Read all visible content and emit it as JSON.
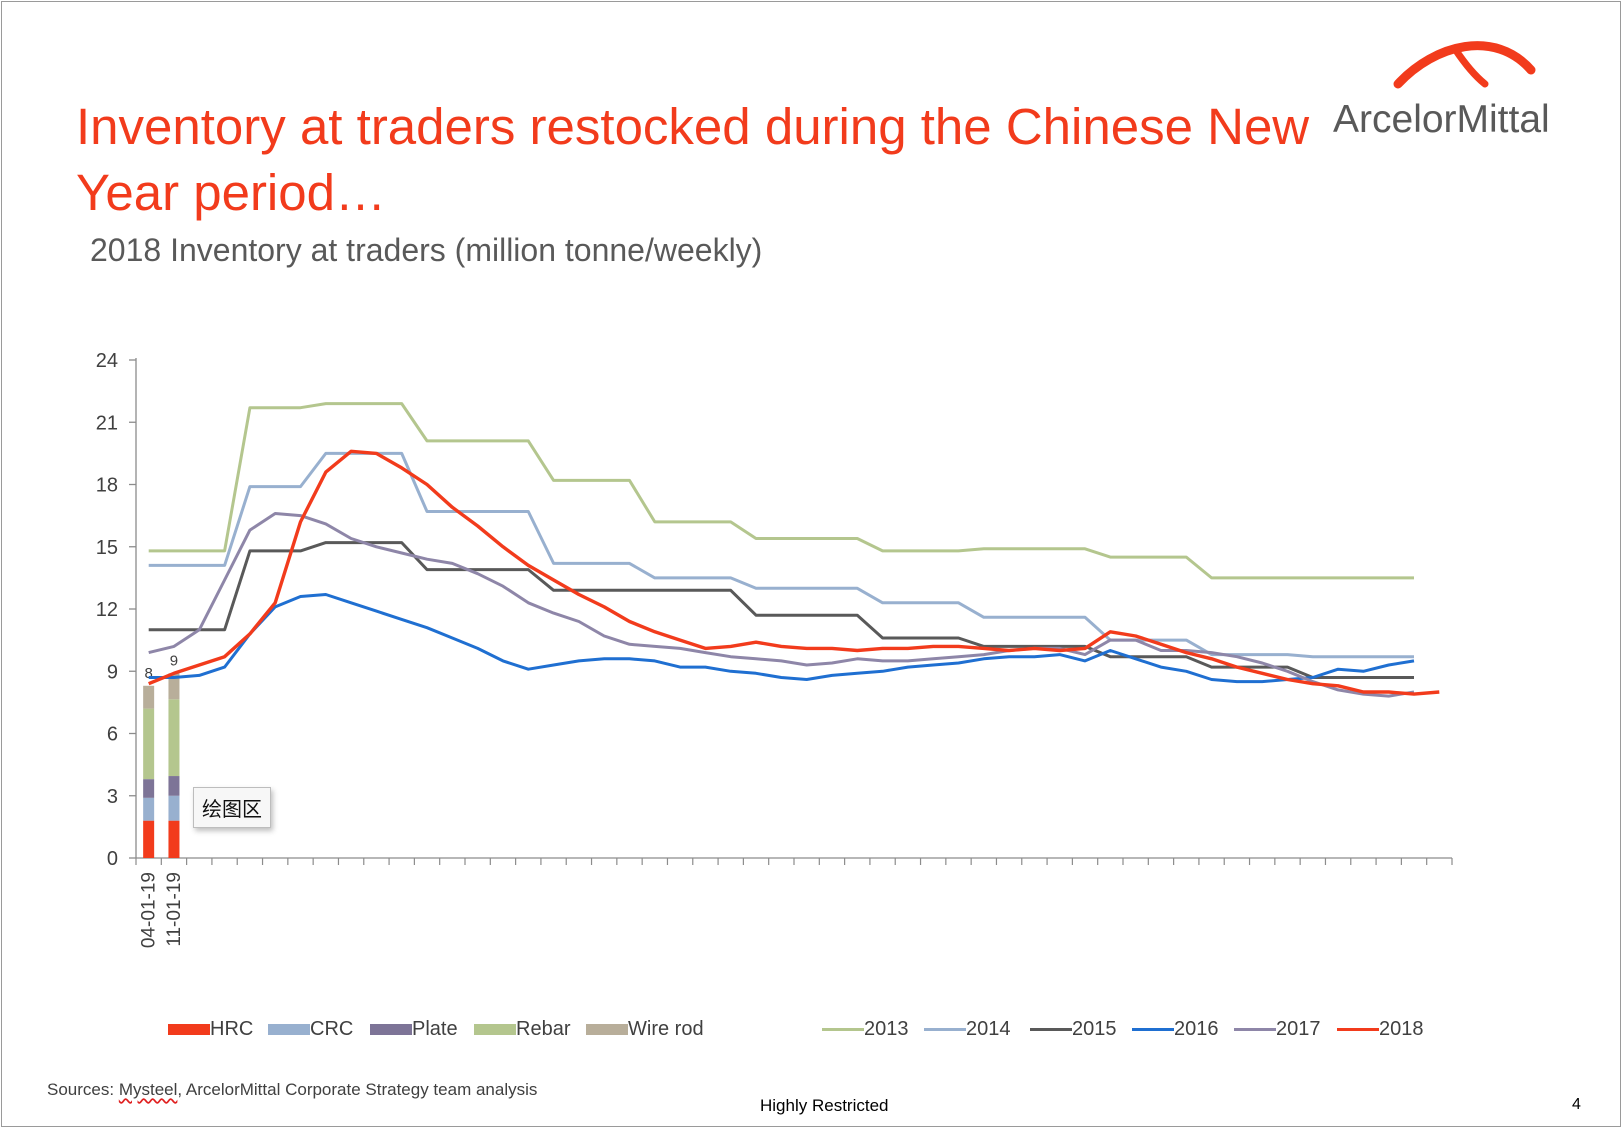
{
  "slide": {
    "title": "Inventory at traders restocked during the Chinese New Year period…",
    "logo_text": "ArcelorMittal",
    "sources_prefix": "Sources: ",
    "sources_mysteel": "Mysteel",
    "sources_rest": ", ArcelorMittal Corporate Strategy team analysis",
    "classification": "Highly Restricted",
    "page_number": "4",
    "tooltip": "绘图区"
  },
  "colors": {
    "title": "#f23b1c",
    "logo_arc": "#f23b1c",
    "HRC": "#f23b1c",
    "CRC": "#98b0cf",
    "Plate": "#7d7497",
    "Rebar": "#b4c68e",
    "Wire rod": "#b8ae9a",
    "2013": "#b4c68e",
    "2014": "#98b0cf",
    "2015": "#595959",
    "2016": "#1f6fd1",
    "2017": "#8e86a8",
    "2018": "#f23b1c"
  },
  "chart_data": {
    "type": "bar",
    "title": "2018 Inventory at traders (million tonne/weekly)",
    "xlabel": "",
    "ylabel": "",
    "ylim": [
      0,
      24
    ],
    "yticks": [
      0,
      3,
      6,
      9,
      12,
      15,
      18,
      21,
      24
    ],
    "categories": [
      "04-01-19",
      "11-01-19"
    ],
    "stacked_series": [
      {
        "name": "HRC",
        "values": [
          1.8,
          1.8
        ]
      },
      {
        "name": "CRC",
        "values": [
          1.1,
          1.2
        ]
      },
      {
        "name": "Plate",
        "values": [
          0.9,
          0.95
        ]
      },
      {
        "name": "Rebar",
        "values": [
          3.4,
          3.7
        ]
      },
      {
        "name": "Wire rod",
        "values": [
          1.1,
          1.25
        ]
      }
    ],
    "totals": [
      "8",
      "9"
    ],
    "line_series": [
      {
        "name": "2013",
        "values": [
          14.8,
          14.8,
          14.8,
          14.8,
          21.7,
          21.7,
          21.7,
          21.9,
          21.9,
          21.9,
          21.9,
          20.1,
          20.1,
          20.1,
          20.1,
          20.1,
          18.2,
          18.2,
          18.2,
          18.2,
          16.2,
          16.2,
          16.2,
          16.2,
          15.4,
          15.4,
          15.4,
          15.4,
          15.4,
          14.8,
          14.8,
          14.8,
          14.8,
          14.9,
          14.9,
          14.9,
          14.9,
          14.9,
          14.5,
          14.5,
          14.5,
          14.5,
          13.5,
          13.5,
          13.5,
          13.5,
          13.5,
          13.5,
          13.5,
          13.5,
          13.5
        ]
      },
      {
        "name": "2014",
        "values": [
          14.1,
          14.1,
          14.1,
          14.1,
          17.9,
          17.9,
          17.9,
          19.5,
          19.5,
          19.5,
          19.5,
          16.7,
          16.7,
          16.7,
          16.7,
          16.7,
          14.2,
          14.2,
          14.2,
          14.2,
          13.5,
          13.5,
          13.5,
          13.5,
          13.0,
          13.0,
          13.0,
          13.0,
          13.0,
          12.3,
          12.3,
          12.3,
          12.3,
          11.6,
          11.6,
          11.6,
          11.6,
          11.6,
          10.5,
          10.5,
          10.5,
          10.5,
          9.8,
          9.8,
          9.8,
          9.8,
          9.7,
          9.7,
          9.7,
          9.7,
          9.7
        ]
      },
      {
        "name": "2015",
        "values": [
          11.0,
          11.0,
          11.0,
          11.0,
          14.8,
          14.8,
          14.8,
          15.2,
          15.2,
          15.2,
          15.2,
          13.9,
          13.9,
          13.9,
          13.9,
          13.9,
          12.9,
          12.9,
          12.9,
          12.9,
          12.9,
          12.9,
          12.9,
          12.9,
          11.7,
          11.7,
          11.7,
          11.7,
          11.7,
          10.6,
          10.6,
          10.6,
          10.6,
          10.2,
          10.2,
          10.2,
          10.2,
          10.2,
          9.7,
          9.7,
          9.7,
          9.7,
          9.2,
          9.2,
          9.2,
          9.2,
          8.7,
          8.7,
          8.7,
          8.7,
          8.7
        ]
      },
      {
        "name": "2016",
        "values": [
          8.7,
          8.7,
          8.8,
          9.2,
          10.8,
          12.1,
          12.6,
          12.7,
          12.3,
          11.9,
          11.5,
          11.1,
          10.6,
          10.1,
          9.5,
          9.1,
          9.3,
          9.5,
          9.6,
          9.6,
          9.5,
          9.2,
          9.2,
          9.0,
          8.9,
          8.7,
          8.6,
          8.8,
          8.9,
          9.0,
          9.2,
          9.3,
          9.4,
          9.6,
          9.7,
          9.7,
          9.8,
          9.5,
          10.0,
          9.6,
          9.2,
          9.0,
          8.6,
          8.5,
          8.5,
          8.6,
          8.7,
          9.1,
          9.0,
          9.3,
          9.5
        ]
      },
      {
        "name": "2017",
        "values": [
          9.9,
          10.2,
          11.0,
          13.4,
          15.8,
          16.6,
          16.5,
          16.1,
          15.4,
          15.0,
          14.7,
          14.4,
          14.2,
          13.7,
          13.1,
          12.3,
          11.8,
          11.4,
          10.7,
          10.3,
          10.2,
          10.1,
          9.9,
          9.7,
          9.6,
          9.5,
          9.3,
          9.4,
          9.6,
          9.5,
          9.5,
          9.6,
          9.7,
          9.8,
          10.0,
          10.1,
          10.1,
          9.8,
          10.5,
          10.5,
          10.0,
          10.0,
          9.9,
          9.7,
          9.4,
          9.0,
          8.5,
          8.1,
          7.9,
          7.8,
          8.0
        ]
      },
      {
        "name": "2018",
        "values": [
          8.4,
          8.9,
          9.3,
          9.7,
          10.8,
          12.3,
          16.2,
          18.6,
          19.6,
          19.5,
          18.8,
          18.0,
          16.9,
          16.0,
          15.0,
          14.1,
          13.4,
          12.7,
          12.1,
          11.4,
          10.9,
          10.5,
          10.1,
          10.2,
          10.4,
          10.2,
          10.1,
          10.1,
          10.0,
          10.1,
          10.1,
          10.2,
          10.2,
          10.1,
          10.0,
          10.1,
          10.0,
          10.1,
          10.9,
          10.7,
          10.3,
          9.9,
          9.6,
          9.2,
          8.9,
          8.6,
          8.4,
          8.3,
          8.0,
          8.0,
          7.9,
          8.0
        ]
      }
    ]
  }
}
